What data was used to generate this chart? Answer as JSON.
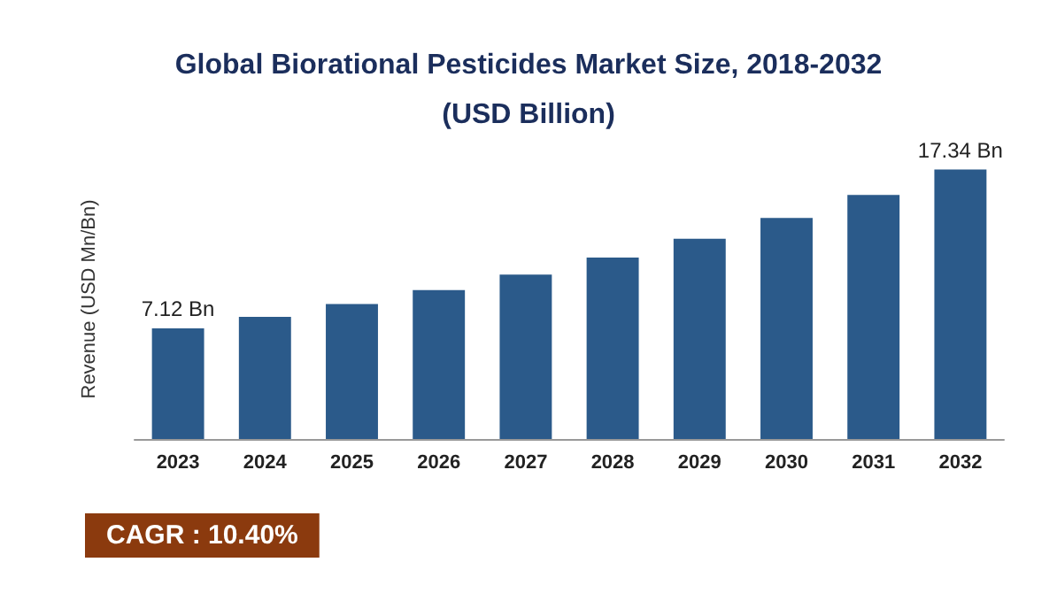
{
  "chart_data": {
    "type": "bar",
    "title": "Global Biorational Pesticides Market Size, 2018-2032\n(USD Billion)",
    "ylabel": "Revenue (USD Mn/Bn)",
    "categories": [
      "2023",
      "2024",
      "2025",
      "2026",
      "2027",
      "2028",
      "2029",
      "2030",
      "2031",
      "2032"
    ],
    "values": [
      7.12,
      7.86,
      8.68,
      9.58,
      10.58,
      11.68,
      12.89,
      14.23,
      15.71,
      17.34
    ],
    "value_labels": [
      "7.12 Bn",
      null,
      null,
      null,
      null,
      null,
      null,
      null,
      null,
      "17.34 Bn"
    ],
    "color": "#2b5a8a",
    "annotations": [
      "CAGR : 10.40%"
    ],
    "grid": false
  }
}
